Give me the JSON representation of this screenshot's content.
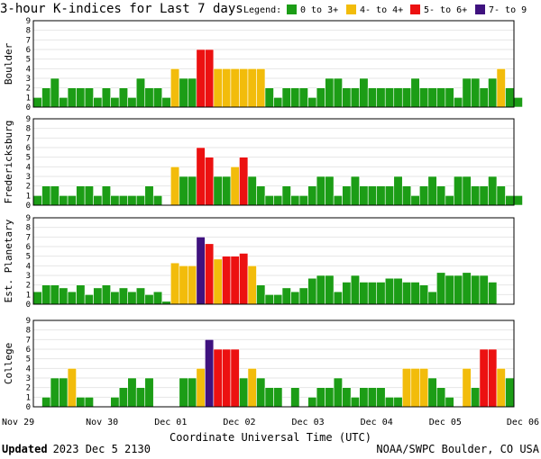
{
  "chart_data": {
    "type": "bar",
    "title": "3-hour K-indices for Last 7 days",
    "legend": {
      "label": "Legend:",
      "entries": [
        {
          "name": "0 to 3+",
          "color": "#1c9d16"
        },
        {
          "name": "4- to 4+",
          "color": "#f2bc0b"
        },
        {
          "name": "5- to 6+",
          "color": "#ec1111"
        },
        {
          "name": "7- to 9",
          "color": "#3f127f"
        }
      ]
    },
    "xlabel": "Coordinate Universal Time (UTC)",
    "x_ticks": [
      "Nov 29",
      "Nov 30",
      "Dec 01",
      "Dec 02",
      "Dec 03",
      "Dec 04",
      "Dec 05",
      "Dec 06"
    ],
    "ylim": [
      0,
      9
    ],
    "y_ticks": [
      "0",
      "1",
      "2",
      "3",
      "4",
      "5",
      "6",
      "7",
      "8",
      "9"
    ],
    "series": [
      {
        "name": "Boulder",
        "values": [
          1,
          2,
          3,
          1,
          2,
          2,
          2,
          1,
          2,
          1,
          2,
          1,
          3,
          2,
          2,
          1,
          4,
          3,
          3,
          6,
          6,
          4,
          4,
          4,
          4,
          4,
          4,
          2,
          1,
          2,
          2,
          2,
          1,
          2,
          3,
          3,
          2,
          2,
          3,
          2,
          2,
          2,
          2,
          2,
          3,
          2,
          2,
          2,
          2,
          1,
          3,
          3,
          2,
          3,
          4,
          2,
          1,
          0
        ]
      },
      {
        "name": "Fredericksburg",
        "values": [
          1,
          2,
          2,
          1,
          1,
          2,
          2,
          1,
          2,
          1,
          1,
          1,
          1,
          2,
          1,
          0,
          4,
          3,
          3,
          6,
          5,
          3,
          3,
          4,
          5,
          3,
          2,
          1,
          1,
          2,
          1,
          1,
          2,
          3,
          3,
          1,
          2,
          3,
          2,
          2,
          2,
          2,
          3,
          2,
          1,
          2,
          3,
          2,
          1,
          3,
          3,
          2,
          2,
          3,
          2,
          1,
          1,
          0
        ]
      },
      {
        "name": "Est. Planetary",
        "values": [
          1.3,
          2,
          2,
          1.7,
          1.3,
          2,
          1,
          1.7,
          2,
          1.3,
          1.7,
          1.3,
          1.7,
          1,
          1.3,
          0.3,
          4.3,
          4,
          4,
          7,
          6.3,
          4.7,
          5,
          5,
          5.3,
          4,
          2,
          1,
          1,
          1.7,
          1.3,
          1.7,
          2.7,
          3,
          3,
          1.3,
          2.3,
          3,
          2.3,
          2.3,
          2.3,
          2.7,
          2.7,
          2.3,
          2.3,
          2,
          1.3,
          3.3,
          3,
          3,
          3.3,
          3,
          3,
          2.3
        ]
      },
      {
        "name": "College",
        "values": [
          0,
          1,
          3,
          3,
          4,
          1,
          1,
          0,
          0,
          1,
          2,
          3,
          2,
          3,
          0,
          0,
          0,
          3,
          3,
          4,
          7,
          6,
          6,
          6,
          3,
          4,
          3,
          2,
          2,
          0,
          2,
          0,
          1,
          2,
          2,
          3,
          2,
          1,
          2,
          2,
          2,
          1,
          1,
          4,
          4,
          4,
          3,
          2,
          1,
          0,
          4,
          2,
          6,
          6,
          4,
          3,
          0
        ]
      }
    ]
  },
  "footer": {
    "updated_label": "Updated",
    "updated_value": "2023 Dec  5 2130",
    "credit": "NOAA/SWPC Boulder, CO USA"
  }
}
